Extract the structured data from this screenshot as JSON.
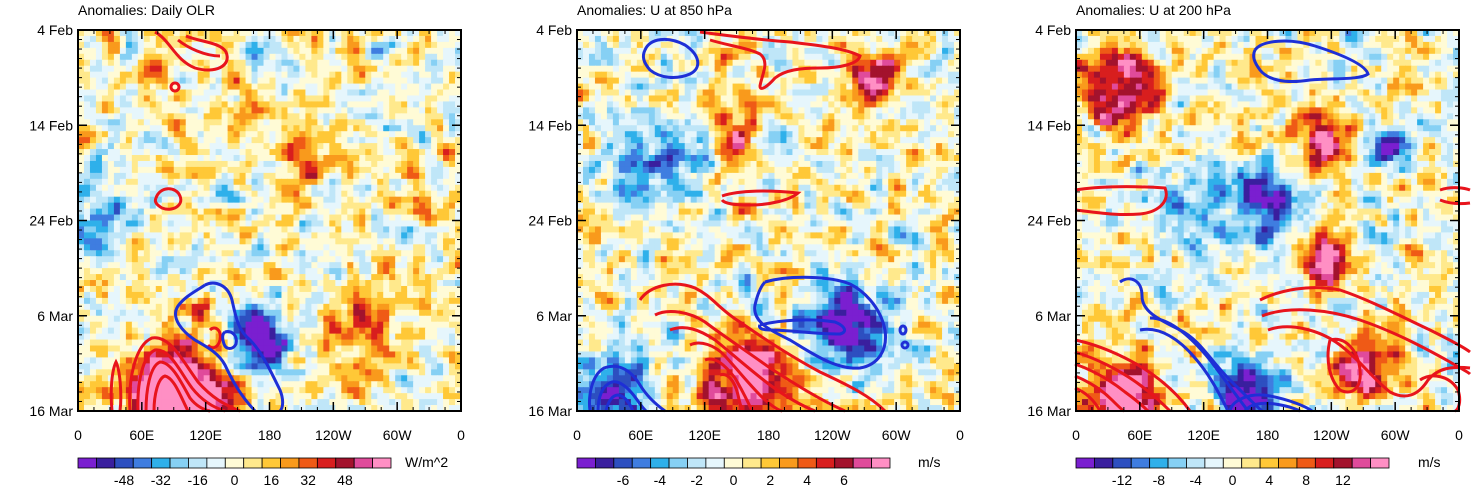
{
  "chart_data": [
    {
      "type": "heatmap",
      "title": "Anomalies: Daily OLR",
      "x_ticks": [
        "0",
        "60E",
        "120E",
        "180",
        "120W",
        "60W",
        "0"
      ],
      "y_ticks": [
        "4 Feb",
        "14 Feb",
        "24 Feb",
        "6 Mar",
        "16 Mar"
      ],
      "colorbar": {
        "labels": [
          "-48",
          "-32",
          "-16",
          "0",
          "16",
          "32",
          "48"
        ],
        "units": "W/m^2",
        "min": -64,
        "max": 64,
        "step": 8
      },
      "contours_positive": "red",
      "contours_negative": "blue"
    },
    {
      "type": "heatmap",
      "title": "Anomalies: U at 850 hPa",
      "x_ticks": [
        "0",
        "60E",
        "120E",
        "180",
        "120W",
        "60W",
        "0"
      ],
      "y_ticks": [
        "4 Feb",
        "14 Feb",
        "24 Feb",
        "6 Mar",
        "16 Mar"
      ],
      "colorbar": {
        "labels": [
          "-6",
          "-4",
          "-2",
          "0",
          "2",
          "4",
          "6"
        ],
        "units": "m/s",
        "min": -8,
        "max": 8,
        "step": 1
      },
      "contours_positive": "red",
      "contours_negative": "blue"
    },
    {
      "type": "heatmap",
      "title": "Anomalies: U at 200 hPa",
      "x_ticks": [
        "0",
        "60E",
        "120E",
        "180",
        "120W",
        "60W",
        "0"
      ],
      "y_ticks": [
        "4 Feb",
        "14 Feb",
        "24 Feb",
        "6 Mar",
        "16 Mar"
      ],
      "colorbar": {
        "labels": [
          "-12",
          "-8",
          "-4",
          "0",
          "4",
          "8",
          "12"
        ],
        "units": "m/s",
        "min": -16,
        "max": 16,
        "step": 2
      },
      "contours_positive": "red",
      "contours_negative": "blue"
    }
  ],
  "palette": [
    "#7a1fd0",
    "#3a1f9e",
    "#2d4fc0",
    "#3f7de0",
    "#2fb0ea",
    "#86d0f4",
    "#bfe6f8",
    "#e6f6fc",
    "#fffbd6",
    "#ffe98c",
    "#ffc837",
    "#f99a1c",
    "#ef5a16",
    "#d81e1e",
    "#a3122d",
    "#e04b9b",
    "#ff8fc4"
  ],
  "contour_colors": {
    "positive": "#e8141c",
    "negative": "#1e2fd6"
  }
}
